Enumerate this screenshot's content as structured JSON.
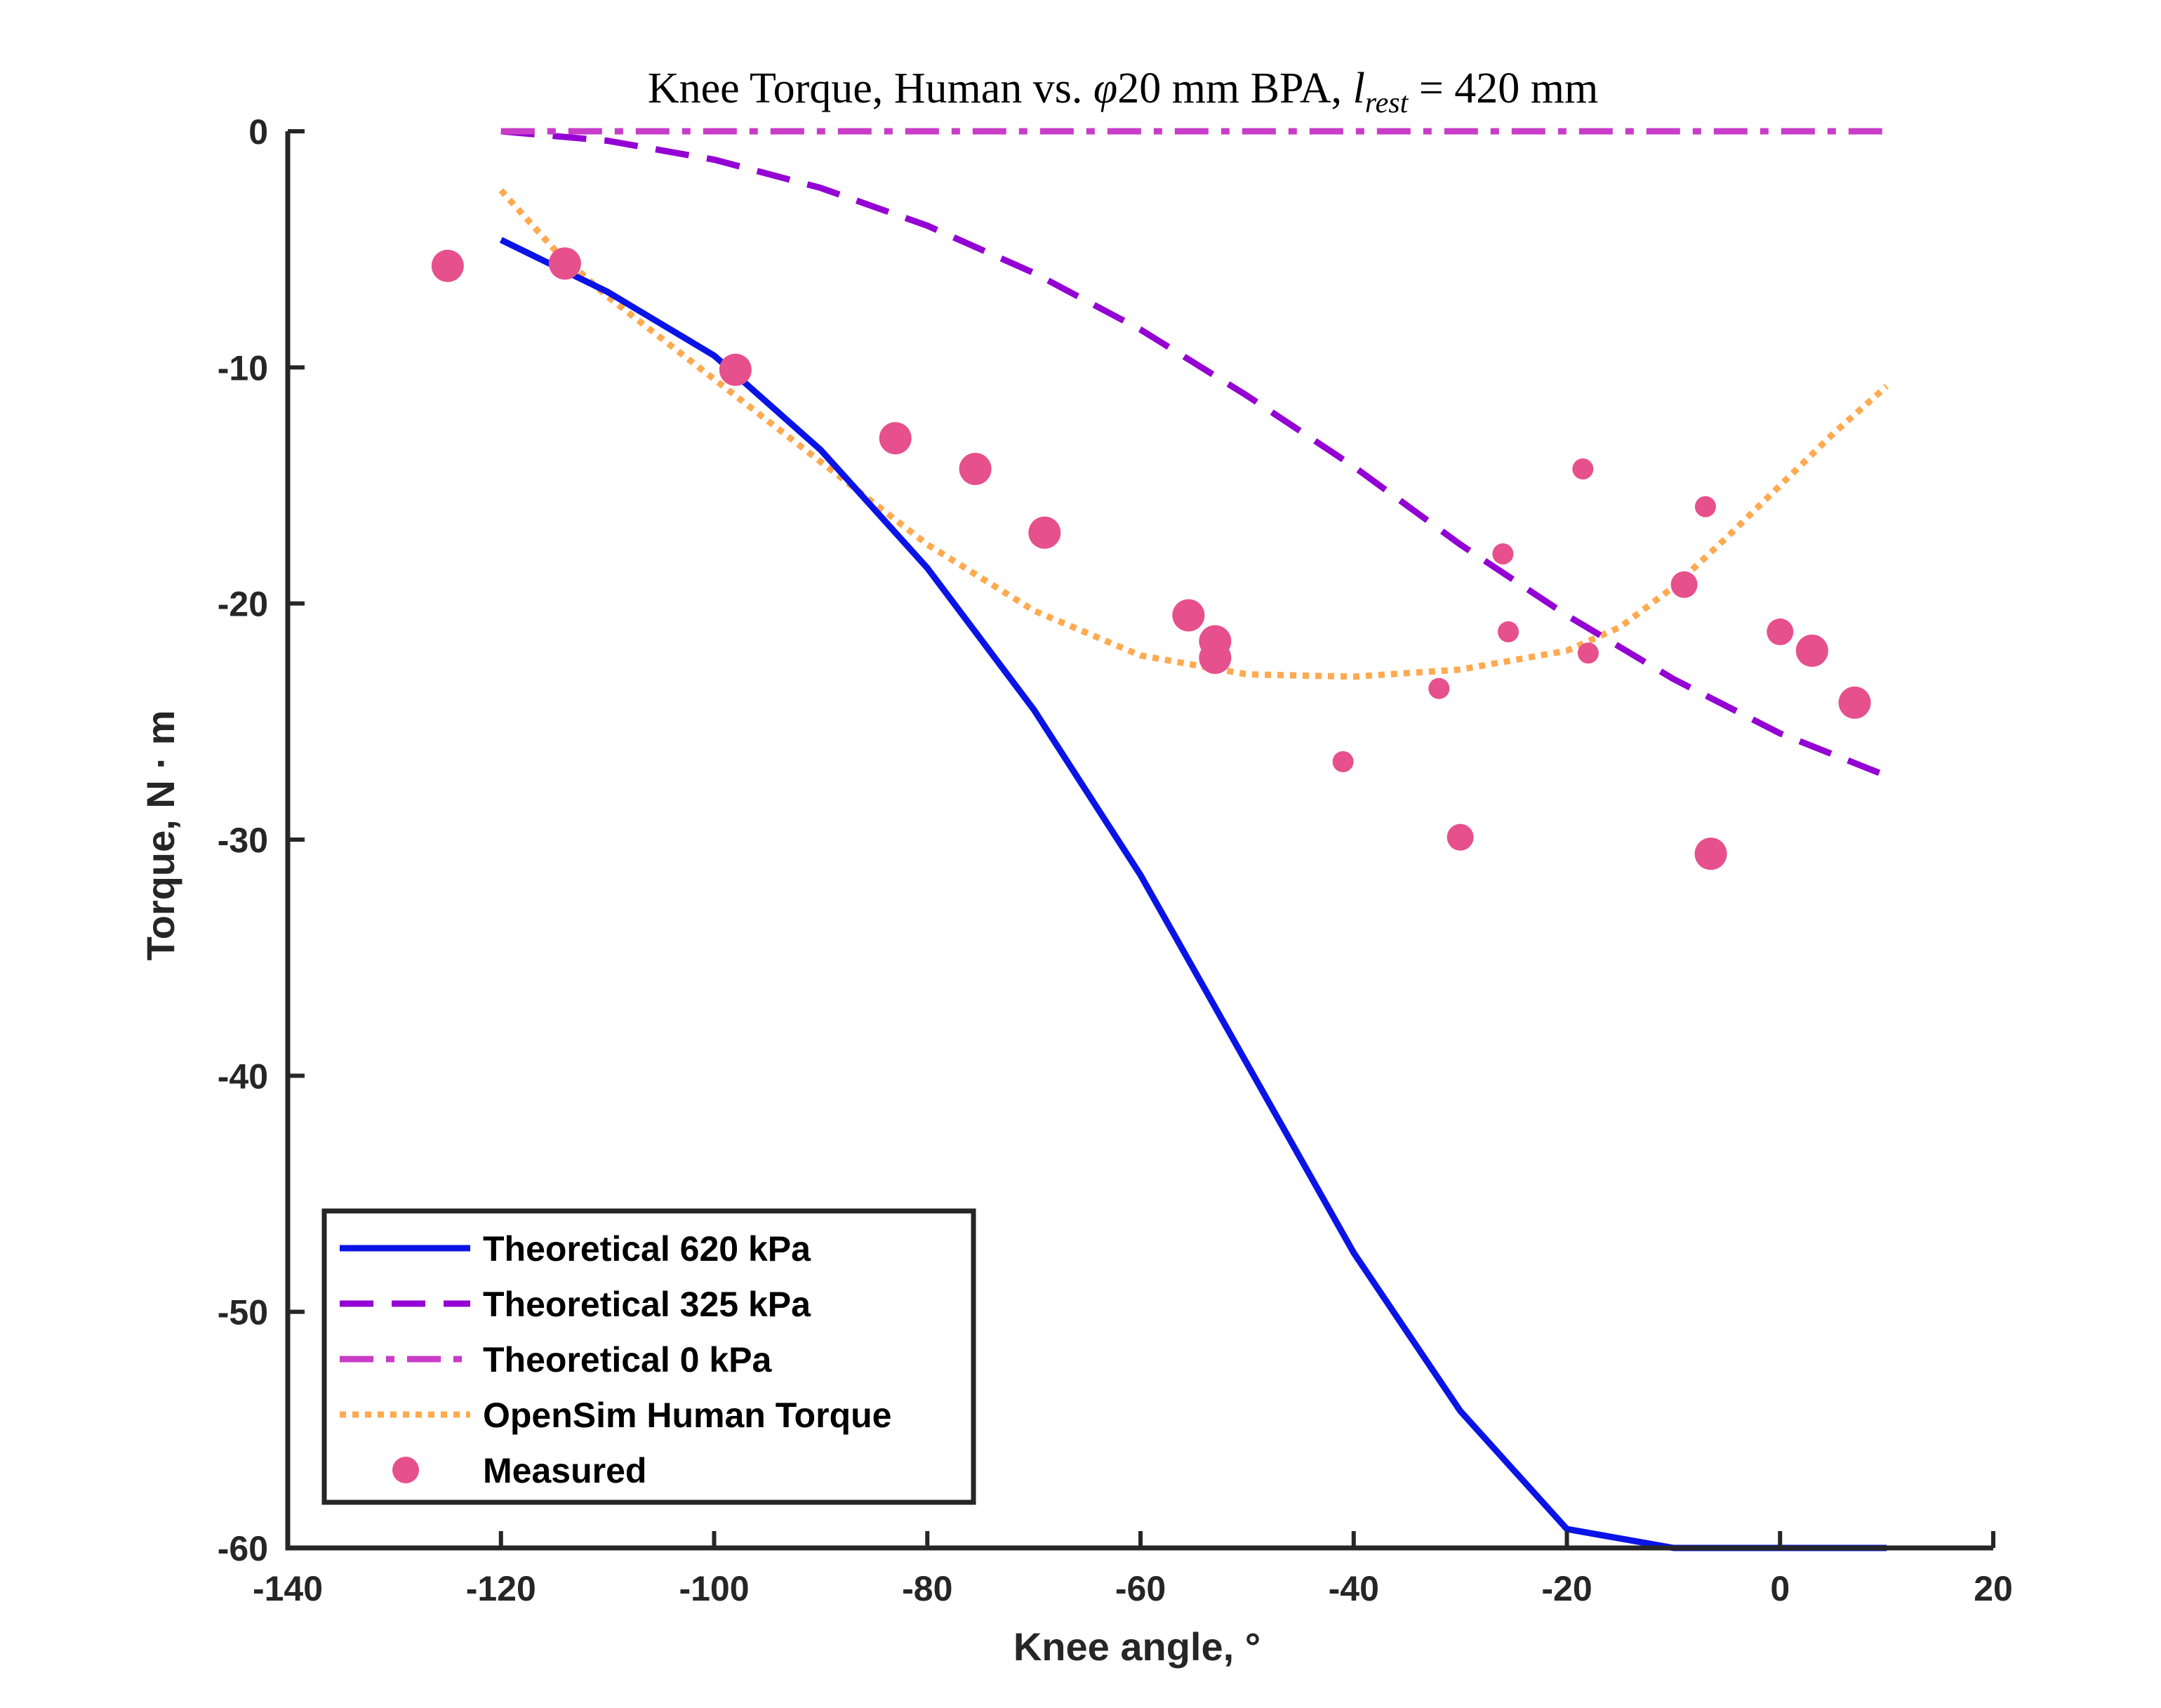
{
  "chart_data": {
    "type": "line",
    "title": {
      "prefix": "Knee Torque, Human vs. ",
      "symbol": "φ",
      "middle": "20 mm BPA, ",
      "var": "l",
      "subscript": "rest",
      "suffix": " = 420 mm"
    },
    "xlabel": "Knee angle, °",
    "ylabel": "Torque, N · m",
    "xlim": [
      -140,
      20
    ],
    "ylim": [
      -60,
      0
    ],
    "xticks": [
      "-140",
      "-120",
      "-100",
      "-80",
      "-60",
      "-40",
      "-20",
      "0",
      "20"
    ],
    "yticks": [
      "0",
      "-10",
      "-20",
      "-30",
      "-40",
      "-50",
      "-60"
    ],
    "grid": false,
    "legend_position": "bottom-left",
    "series": [
      {
        "name": "Theoretical 620 kPa",
        "style": "solid",
        "color": "#0a14e6",
        "x": [
          -120,
          -110,
          -100,
          -90,
          -80,
          -70,
          -60,
          -50,
          -40,
          -30,
          -20,
          -10,
          -5,
          0,
          3,
          7,
          10
        ],
        "y": [
          -4.6,
          -6.8,
          -9.5,
          -13.5,
          -18.5,
          -24.5,
          -31.5,
          -39.5,
          -47.5,
          -54.2,
          -59.2,
          -62.4,
          -63.6,
          -64.1,
          -64.4,
          -63.9,
          -63.7
        ]
      },
      {
        "name": "Theoretical 325 kPa",
        "style": "dashed",
        "color": "#9400d3",
        "x": [
          -120,
          -110,
          -100,
          -90,
          -80,
          -70,
          -60,
          -50,
          -40,
          -30,
          -20,
          -10,
          0,
          5,
          10
        ],
        "y": [
          0,
          -0.4,
          -1.2,
          -2.4,
          -4.0,
          -6.0,
          -8.4,
          -11.2,
          -14.2,
          -17.5,
          -20.5,
          -23.2,
          -25.5,
          -26.4,
          -27.3
        ]
      },
      {
        "name": "Theoretical 0 kPa",
        "style": "dashdot",
        "color": "#c83cc8",
        "x": [
          -120,
          10
        ],
        "y": [
          0,
          0
        ]
      },
      {
        "name": "OpenSim Human Torque",
        "style": "dotted",
        "color": "#ffaa50",
        "x": [
          -120,
          -115,
          -110,
          -100,
          -90,
          -80,
          -70,
          -60,
          -50,
          -40,
          -30,
          -20,
          -15,
          -10,
          -5,
          0,
          5,
          10
        ],
        "y": [
          -2.5,
          -5.0,
          -7.0,
          -10.5,
          -14.0,
          -17.5,
          -20.3,
          -22.2,
          -23.0,
          -23.1,
          -22.8,
          -22.0,
          -21.0,
          -19.3,
          -17.2,
          -15.0,
          -12.8,
          -10.8
        ]
      },
      {
        "name": "Measured",
        "style": "markers",
        "color": "#e6508c",
        "x": [
          -125,
          -114,
          -98,
          -83,
          -75.5,
          -69,
          -55.5,
          -53,
          -53,
          -41,
          -32,
          -30,
          -26,
          -25.5,
          -18.5,
          -18,
          -9,
          -7,
          -6.5,
          0,
          3,
          7
        ],
        "y": [
          -5.7,
          -5.6,
          -10.1,
          -13.0,
          -14.3,
          -17.0,
          -20.5,
          -21.6,
          -22.3,
          -26.7,
          -23.6,
          -29.9,
          -17.9,
          -21.2,
          -14.3,
          -22.1,
          -19.2,
          -15.9,
          -30.6,
          -21.2,
          -22.0,
          -24.2
        ],
        "sizes": [
          "large",
          "large",
          "large",
          "large",
          "large",
          "large",
          "large",
          "large",
          "large",
          "small",
          "small",
          "medium",
          "small",
          "small",
          "small",
          "small",
          "medium",
          "small",
          "large",
          "medium",
          "large",
          "large"
        ]
      }
    ]
  }
}
